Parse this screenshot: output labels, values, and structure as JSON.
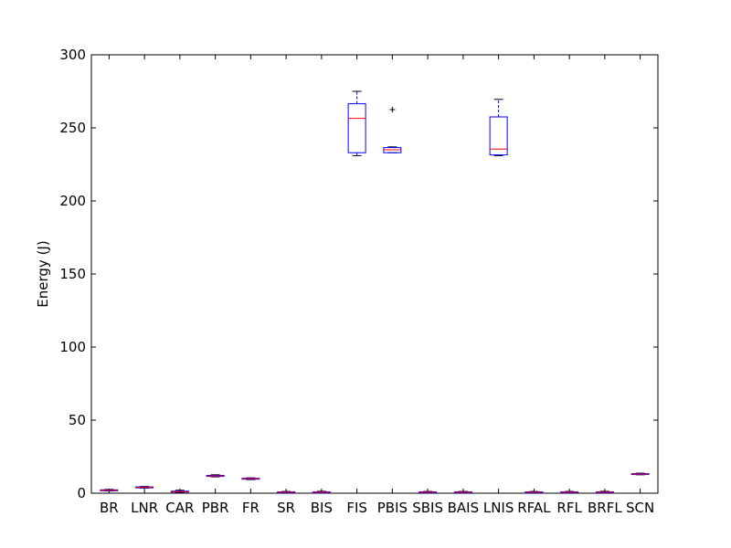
{
  "chart_data": {
    "type": "box",
    "title": "",
    "xlabel": "",
    "ylabel": "Energy (J)",
    "ylim": [
      0,
      300
    ],
    "yticks": [
      0,
      50,
      100,
      150,
      200,
      250,
      300
    ],
    "grid": false,
    "legend": "none",
    "colors": {
      "box": "#0000ff",
      "median": "#ff0000",
      "whisker": "#000000",
      "flier": "#000000"
    },
    "categories": [
      "BR",
      "LNR",
      "CAR",
      "PBR",
      "FR",
      "SR",
      "BIS",
      "FIS",
      "PBIS",
      "SBIS",
      "BAIS",
      "LNIS",
      "RFAL",
      "RFL",
      "BRFL",
      "SCN"
    ],
    "boxes": [
      {
        "label": "BR",
        "whislo": 1.5,
        "q1": 1.8,
        "med": 2.0,
        "q3": 2.3,
        "whishi": 2.6,
        "fliers": []
      },
      {
        "label": "LNR",
        "whislo": 3.5,
        "q1": 3.8,
        "med": 4.0,
        "q3": 4.3,
        "whishi": 4.6,
        "fliers": []
      },
      {
        "label": "CAR",
        "whislo": 0.5,
        "q1": 0.8,
        "med": 1.0,
        "q3": 1.4,
        "whishi": 2.0,
        "fliers": []
      },
      {
        "label": "PBR",
        "whislo": 11.2,
        "q1": 11.5,
        "med": 11.8,
        "q3": 12.2,
        "whishi": 12.6,
        "fliers": []
      },
      {
        "label": "FR",
        "whislo": 9.3,
        "q1": 9.6,
        "med": 9.9,
        "q3": 10.2,
        "whishi": 10.5,
        "fliers": []
      },
      {
        "label": "SR",
        "whislo": 0.3,
        "q1": 0.5,
        "med": 0.7,
        "q3": 0.9,
        "whishi": 1.2,
        "fliers": []
      },
      {
        "label": "BIS",
        "whislo": 0.3,
        "q1": 0.5,
        "med": 0.7,
        "q3": 0.9,
        "whishi": 1.3,
        "fliers": []
      },
      {
        "label": "FIS",
        "whislo": 231.0,
        "q1": 233.0,
        "med": 256.5,
        "q3": 266.5,
        "whishi": 275.0,
        "fliers": []
      },
      {
        "label": "PBIS",
        "whislo": 233.0,
        "q1": 233.0,
        "med": 235.0,
        "q3": 236.5,
        "whishi": 237.0,
        "fliers": [
          262.5
        ]
      },
      {
        "label": "SBIS",
        "whislo": 0.3,
        "q1": 0.5,
        "med": 0.7,
        "q3": 0.9,
        "whishi": 1.2,
        "fliers": []
      },
      {
        "label": "BAIS",
        "whislo": 0.3,
        "q1": 0.5,
        "med": 0.7,
        "q3": 0.9,
        "whishi": 1.2,
        "fliers": []
      },
      {
        "label": "LNIS",
        "whislo": 231.0,
        "q1": 231.5,
        "med": 235.5,
        "q3": 257.5,
        "whishi": 269.5,
        "fliers": []
      },
      {
        "label": "RFAL",
        "whislo": 0.3,
        "q1": 0.5,
        "med": 0.7,
        "q3": 0.9,
        "whishi": 1.2,
        "fliers": []
      },
      {
        "label": "RFL",
        "whislo": 0.3,
        "q1": 0.5,
        "med": 0.7,
        "q3": 0.9,
        "whishi": 1.2,
        "fliers": []
      },
      {
        "label": "BRFL",
        "whislo": 0.3,
        "q1": 0.5,
        "med": 0.7,
        "q3": 0.9,
        "whishi": 1.3,
        "fliers": []
      },
      {
        "label": "SCN",
        "whislo": 12.6,
        "q1": 12.9,
        "med": 13.1,
        "q3": 13.4,
        "whishi": 13.7,
        "fliers": []
      }
    ]
  }
}
